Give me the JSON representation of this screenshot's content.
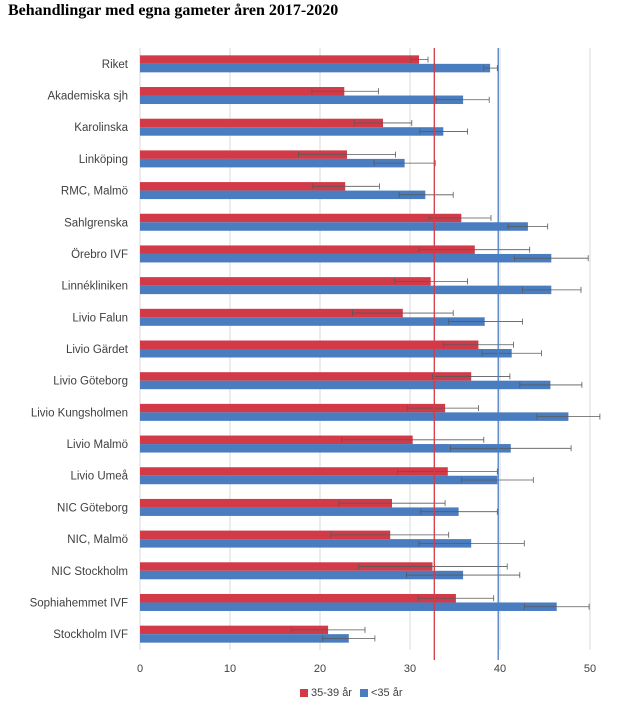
{
  "title": "Behandlingar med egna gameter åren 2017-2020",
  "chart_data": {
    "type": "bar",
    "orientation": "horizontal",
    "title": "Behandlingar med egna gameter åren 2017-2020",
    "categories": [
      "Riket",
      "Akademiska sjh",
      "Karolinska",
      "Linköping",
      "RMC, Malmö",
      "Sahlgrenska",
      "Örebro IVF",
      "Linnékliniken",
      "Livio Falun",
      "Livio Gärdet",
      "Livio Göteborg",
      "Livio Kungsholmen",
      "Livio Malmö",
      "Livio Umeå",
      "NIC Göteborg",
      "NIC, Malmö",
      "NIC Stockholm",
      "Sophiahemmet IVF",
      "Stockholm IVF"
    ],
    "series": [
      {
        "name": "35-39 år",
        "color": "#d23a48",
        "values": [
          31.0,
          22.7,
          27.0,
          23.0,
          22.8,
          35.7,
          37.2,
          32.3,
          29.2,
          37.6,
          36.8,
          33.9,
          30.3,
          34.2,
          28.0,
          27.8,
          32.5,
          35.1,
          20.9
        ],
        "error_low": [
          30.1,
          19.1,
          23.8,
          17.6,
          19.2,
          32.1,
          31.0,
          28.3,
          23.6,
          33.7,
          32.5,
          29.7,
          22.4,
          28.6,
          22.1,
          21.2,
          24.3,
          30.9,
          16.8
        ],
        "error_high": [
          32.0,
          26.5,
          30.2,
          28.4,
          26.6,
          39.0,
          43.3,
          36.4,
          34.8,
          41.5,
          41.1,
          37.6,
          38.2,
          39.7,
          33.9,
          34.3,
          40.8,
          39.3,
          25.0
        ]
      },
      {
        "name": "<35 år",
        "color": "#4a7cc0",
        "values": [
          38.9,
          35.9,
          33.7,
          29.4,
          31.7,
          43.1,
          45.7,
          45.7,
          38.3,
          41.3,
          45.6,
          47.6,
          41.2,
          39.7,
          35.4,
          36.8,
          35.9,
          46.3,
          23.2
        ],
        "error_low": [
          38.2,
          32.9,
          31.1,
          26.0,
          28.8,
          40.9,
          41.6,
          42.5,
          34.3,
          38.0,
          42.2,
          44.1,
          34.5,
          35.7,
          31.2,
          31.0,
          29.6,
          42.7,
          20.3
        ],
        "error_high": [
          39.7,
          38.8,
          36.4,
          32.8,
          34.8,
          45.3,
          49.8,
          49.0,
          42.5,
          44.6,
          49.1,
          51.1,
          47.9,
          43.7,
          39.7,
          42.7,
          42.2,
          49.9,
          26.1
        ]
      }
    ],
    "reference_lines": [
      {
        "series": "35-39 år",
        "value": 32.7,
        "color": "#d23a48"
      },
      {
        "series": "<35 år",
        "value": 39.8,
        "color": "#4a7cc0"
      }
    ],
    "xlim": [
      0,
      52
    ],
    "xticks": [
      0,
      10,
      20,
      30,
      40,
      50
    ],
    "grid": true,
    "legend": {
      "position": "bottom",
      "items": [
        "35-39 år",
        "<35 år"
      ]
    }
  }
}
